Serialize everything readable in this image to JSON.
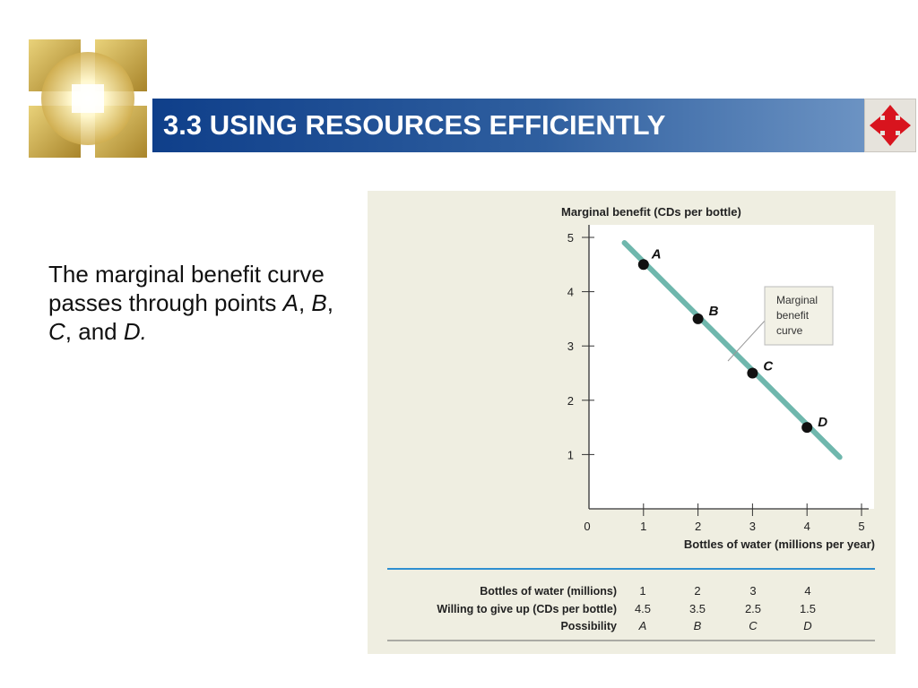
{
  "slide": {
    "title": "3.3 USING RESOURCES EFFICIENTLY",
    "body_parts": [
      "The marginal benefit curve passes through points ",
      "A",
      ", ",
      "B",
      ", ",
      "C",
      ", and ",
      "D."
    ]
  },
  "icons": {
    "logo": "sunburst-squares-logo-icon",
    "nav": "four-way-arrows-icon"
  },
  "colors": {
    "title_bar_dark": "#0f3f8a",
    "title_bar_light": "#6c93c3",
    "curve": "#6fb7ad",
    "nav_arrows": "#d8141e",
    "table_rule": "#2f8fd0"
  },
  "chart_data": {
    "type": "line",
    "ylabel": "Marginal benefit (CDs per bottle)",
    "xlabel": "Bottles of water (millions per year)",
    "xlim": [
      0,
      5
    ],
    "ylim": [
      0,
      5
    ],
    "x_ticks": [
      "0",
      "1",
      "2",
      "3",
      "4",
      "5"
    ],
    "y_ticks": [
      "1",
      "2",
      "3",
      "4",
      "5"
    ],
    "grid": false,
    "curve_label": "Marginal benefit curve",
    "curve_line": {
      "x": [
        0.65,
        4.6
      ],
      "y": [
        4.9,
        0.95
      ]
    },
    "points": [
      {
        "label": "A",
        "x": 1,
        "y": 4.5
      },
      {
        "label": "B",
        "x": 2,
        "y": 3.5
      },
      {
        "label": "C",
        "x": 3,
        "y": 2.5
      },
      {
        "label": "D",
        "x": 4,
        "y": 1.5
      }
    ],
    "table": {
      "row_headers": [
        "Bottles of water (millions)",
        "Willing to give up (CDs per bottle)",
        "Possibility"
      ],
      "columns": [
        [
          "1",
          "4.5",
          "A"
        ],
        [
          "2",
          "3.5",
          "B"
        ],
        [
          "3",
          "2.5",
          "C"
        ],
        [
          "4",
          "1.5",
          "D"
        ]
      ]
    }
  }
}
